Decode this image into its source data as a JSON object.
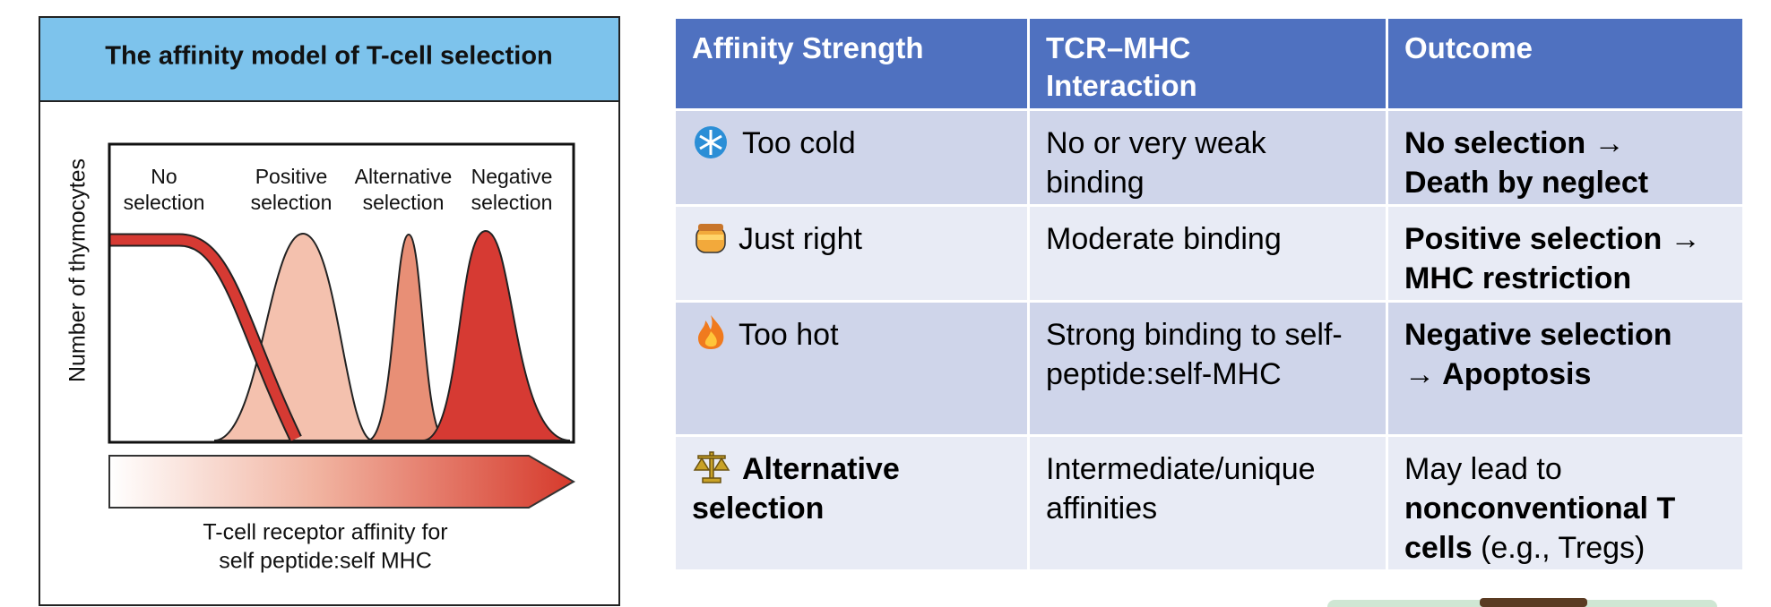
{
  "figure": {
    "title": "The affinity model of T-cell selection",
    "y_label": "Number of thymocytes",
    "curve_labels": [
      [
        "No",
        "selection"
      ],
      [
        "Positive",
        "selection"
      ],
      [
        "Alternative",
        "selection"
      ],
      [
        "Negative",
        "selection"
      ]
    ],
    "x_label": [
      "T-cell receptor affinity for",
      "self peptide:self MHC"
    ]
  },
  "table": {
    "header": [
      [
        "Affinity Strength"
      ],
      [
        "TCR–MHC",
        "Interaction"
      ],
      [
        "Outcome"
      ]
    ],
    "rows": [
      {
        "cells": [
          [
            [
              {
                "text": "Too cold",
                "bold": false
              }
            ]
          ],
          [
            [
              {
                "text": "No or very weak",
                "bold": false
              }
            ],
            [
              {
                "text": "binding",
                "bold": false
              }
            ]
          ],
          [
            [
              {
                "text": "No selection →",
                "bold": true
              }
            ],
            [
              {
                "text": "Death by neglect",
                "bold": true
              }
            ]
          ]
        ]
      },
      {
        "cells": [
          [
            [
              {
                "text": "Just right",
                "bold": false
              }
            ]
          ],
          [
            [
              {
                "text": "Moderate binding",
                "bold": false
              }
            ]
          ],
          [
            [
              {
                "text": "Positive selection →",
                "bold": true
              }
            ],
            [
              {
                "text": "MHC restriction",
                "bold": true
              }
            ]
          ]
        ]
      },
      {
        "cells": [
          [
            [
              {
                "text": "Too hot",
                "bold": false
              }
            ]
          ],
          [
            [
              {
                "text": "Strong binding to self-",
                "bold": false
              }
            ],
            [
              {
                "text": "peptide:self-MHC",
                "bold": false
              }
            ]
          ],
          [
            [
              {
                "text": "Negative selection",
                "bold": true
              }
            ],
            [
              {
                "text": "→ Apoptosis",
                "bold": true
              }
            ]
          ]
        ]
      },
      {
        "cells": [
          [
            [
              {
                "text": "Alternative",
                "bold": true
              }
            ],
            [
              {
                "text": "selection",
                "bold": true
              }
            ]
          ],
          [
            [
              {
                "text": "Intermediate/unique",
                "bold": false
              }
            ],
            [
              {
                "text": "affinities",
                "bold": false
              }
            ]
          ],
          [
            [
              {
                "text": "May lead to",
                "bold": false
              }
            ],
            [
              {
                "text": "nonconventional T",
                "bold": true
              }
            ],
            [
              {
                "text": "cells",
                "bold": true
              },
              {
                "text": " (e.g., Tregs)",
                "bold": false
              }
            ]
          ]
        ]
      }
    ]
  }
}
